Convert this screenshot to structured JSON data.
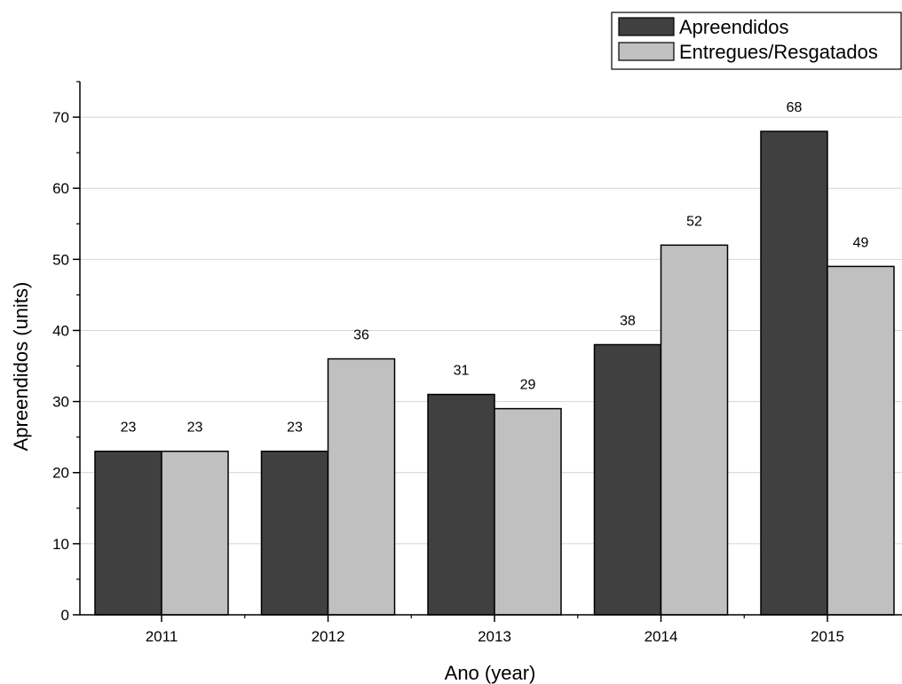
{
  "chart_data": {
    "type": "bar",
    "categories": [
      "2011",
      "2012",
      "2013",
      "2014",
      "2015"
    ],
    "series": [
      {
        "name": "Apreendidos",
        "values": [
          23,
          23,
          31,
          38,
          68
        ],
        "color": "#404040"
      },
      {
        "name": "Entregues/Resgatados",
        "values": [
          23,
          36,
          29,
          52,
          49
        ],
        "color": "#c0c0c0"
      }
    ],
    "xlabel": "Ano (year)",
    "ylabel": "Apreendidos (units)",
    "ylim": [
      0,
      75
    ],
    "yticks": [
      0,
      10,
      20,
      30,
      40,
      50,
      60,
      70
    ],
    "grid": true,
    "legend_position": "top-right",
    "data_labels": true
  }
}
